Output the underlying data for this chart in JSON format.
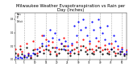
{
  "title": "Milwaukee Weather Evapotranspiration vs Rain per Day (Inches)",
  "title_fontsize": 3.8,
  "background_color": "#ffffff",
  "ylim": [
    0,
    0.35
  ],
  "xlim": [
    1,
    52
  ],
  "red_color": "#ff0000",
  "blue_color": "#0000ff",
  "black_color": "#000000",
  "grid_color": "#aaaaaa",
  "weeks": [
    1,
    2,
    3,
    4,
    5,
    6,
    7,
    8,
    9,
    10,
    11,
    12,
    13,
    14,
    15,
    16,
    17,
    18,
    19,
    20,
    21,
    22,
    23,
    24,
    25,
    26,
    27,
    28,
    29,
    30,
    31,
    32,
    33,
    34,
    35,
    36,
    37,
    38,
    39,
    40,
    41,
    42,
    43,
    44,
    45,
    46,
    47,
    48,
    49,
    50,
    51,
    52
  ],
  "rain": [
    0.08,
    0.04,
    0.1,
    0.06,
    0.03,
    0.12,
    0.05,
    0.02,
    0.14,
    0.08,
    0.05,
    0.09,
    0.18,
    0.07,
    0.15,
    0.11,
    0.06,
    0.13,
    0.09,
    0.04,
    0.08,
    0.12,
    0.16,
    0.1,
    0.07,
    0.05,
    0.11,
    0.08,
    0.13,
    0.06,
    0.1,
    0.15,
    0.09,
    0.07,
    0.12,
    0.08,
    0.06,
    0.1,
    0.14,
    0.09,
    0.07,
    0.11,
    0.08,
    0.06,
    0.12,
    0.09,
    0.05,
    0.08,
    0.06,
    0.09,
    0.04,
    0.07
  ],
  "et": [
    0.02,
    0.01,
    0.02,
    0.01,
    0.03,
    0.02,
    0.04,
    0.03,
    0.05,
    0.04,
    0.08,
    0.06,
    0.12,
    0.18,
    0.1,
    0.14,
    0.22,
    0.16,
    0.2,
    0.09,
    0.15,
    0.12,
    0.08,
    0.14,
    0.1,
    0.06,
    0.12,
    0.25,
    0.18,
    0.28,
    0.22,
    0.3,
    0.24,
    0.18,
    0.14,
    0.28,
    0.22,
    0.16,
    0.3,
    0.24,
    0.2,
    0.15,
    0.25,
    0.12,
    0.08,
    0.18,
    0.14,
    0.1,
    0.06,
    0.08,
    0.04,
    0.06
  ],
  "deficit": [
    0.05,
    0.03,
    0.08,
    0.04,
    0.02,
    0.09,
    0.03,
    0.01,
    0.07,
    0.04,
    0.03,
    0.06,
    0.1,
    0.05,
    0.08,
    0.07,
    0.04,
    0.09,
    0.06,
    0.03,
    0.05,
    0.08,
    0.1,
    0.07,
    0.05,
    0.03,
    0.07,
    0.05,
    0.09,
    0.04,
    0.07,
    0.1,
    0.06,
    0.04,
    0.08,
    0.05,
    0.04,
    0.07,
    0.09,
    0.06,
    0.04,
    0.08,
    0.05,
    0.04,
    0.08,
    0.06,
    0.03,
    0.05,
    0.04,
    0.06,
    0.03,
    0.04
  ],
  "vgrid_positions": [
    5,
    10,
    15,
    20,
    25,
    30,
    35,
    40,
    45,
    50
  ],
  "yticks": [
    0.0,
    0.1,
    0.2,
    0.3
  ],
  "xtick_positions": [
    1,
    5,
    10,
    15,
    20,
    25,
    30,
    35,
    40,
    45,
    50
  ],
  "legend_labels": [
    "Rain",
    "ET",
    "Deficit"
  ],
  "legend_colors": [
    "#ff0000",
    "#0000ff",
    "#000000"
  ]
}
